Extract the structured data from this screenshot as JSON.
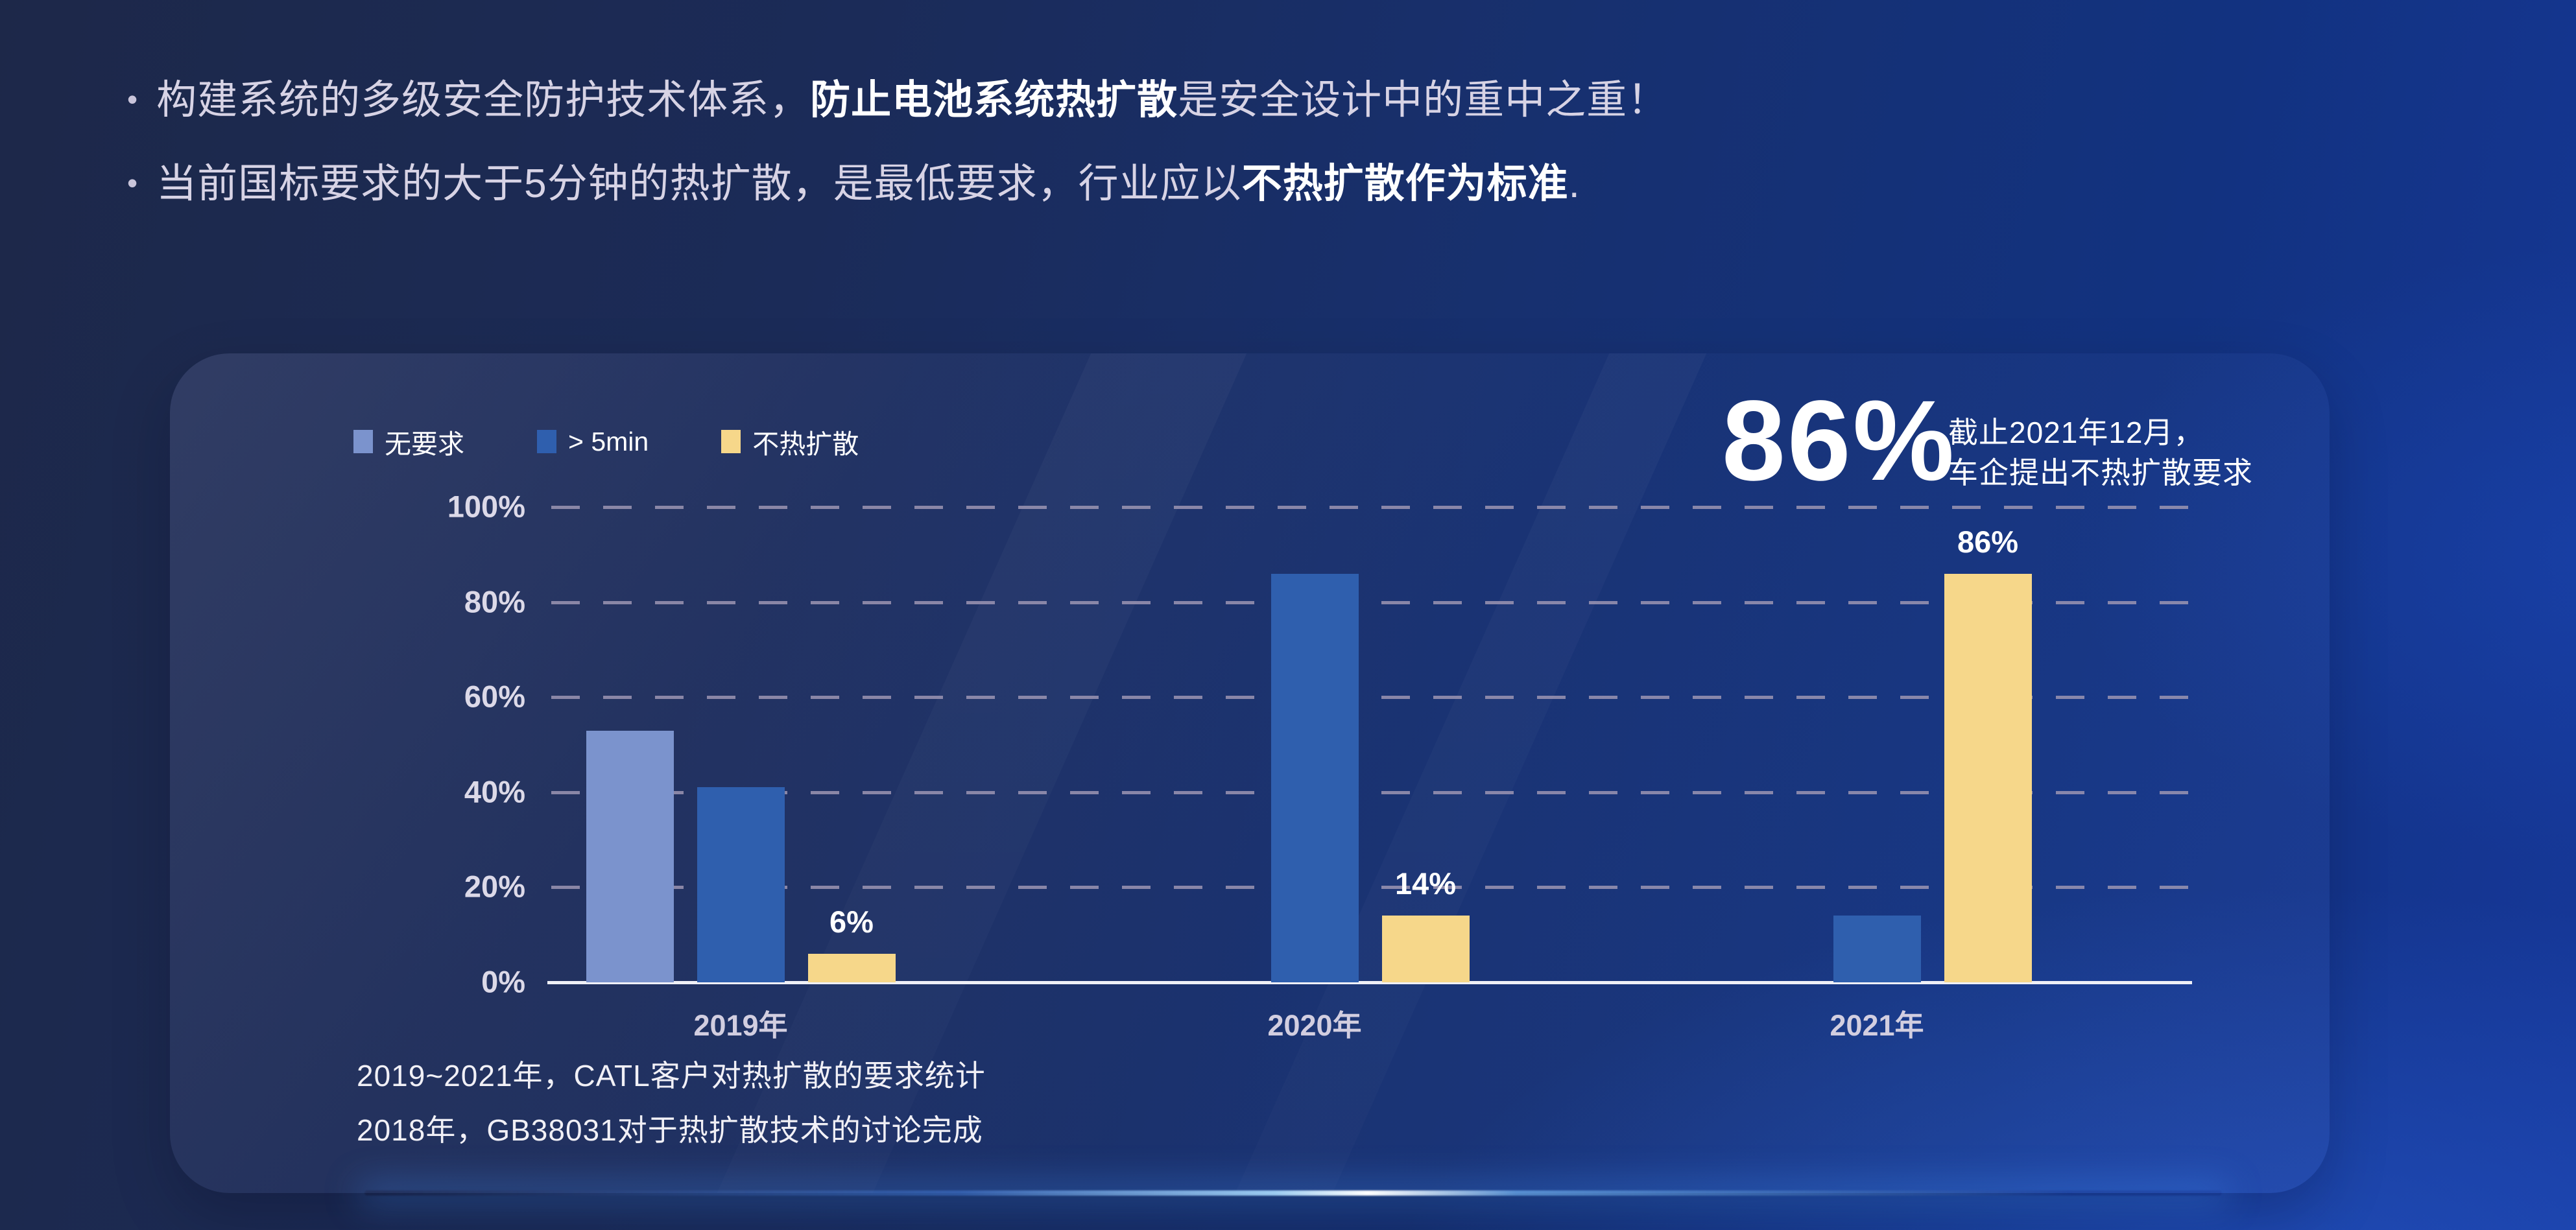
{
  "slide": {
    "bullet_marker": "•",
    "bullets": [
      {
        "pre": "构建系统的多级安全防护技术体系，",
        "bold": "防止电池系统热扩散",
        "post": "是安全设计中的重中之重！"
      },
      {
        "pre": "当前国标要求的大于5分钟的热扩散，是最低要求，行业应以",
        "bold": "不热扩散作为标准",
        "post": "."
      }
    ]
  },
  "chart_data": {
    "type": "bar",
    "title": "",
    "categories": [
      "2019年",
      "2020年",
      "2021年"
    ],
    "series": [
      {
        "name": "无要求",
        "color": "#7b93cd",
        "values": [
          53,
          null,
          null
        ]
      },
      {
        "name": "> 5min",
        "color": "#2f5fae",
        "values": [
          41,
          86,
          14
        ]
      },
      {
        "name": "不热扩散",
        "color": "#f6d78a",
        "values": [
          6,
          14,
          86
        ]
      }
    ],
    "data_labels": [
      [
        null,
        null,
        "6%"
      ],
      [
        null,
        null,
        "14%"
      ],
      [
        null,
        null,
        "86%"
      ]
    ],
    "xlabel": "",
    "ylabel": "",
    "yticks": [
      "100%",
      "80%",
      "60%",
      "40%",
      "20%",
      "0%"
    ],
    "ylim": [
      0,
      100
    ],
    "grid": "horizontal-dashed",
    "legend_position": "top-left",
    "annotation": {
      "value": "86%",
      "lines": [
        "截止2021年12月，",
        "车企提出不热扩散要求"
      ]
    },
    "captions": [
      "2019~2021年，CATL客户对热扩散的要求统计",
      "2018年，GB38031对于热扩散技术的讨论完成"
    ],
    "axis_colors": {
      "grid": "#9c95b2",
      "axis": "#eff0f7",
      "tick_text": "#dcd9e8"
    }
  }
}
